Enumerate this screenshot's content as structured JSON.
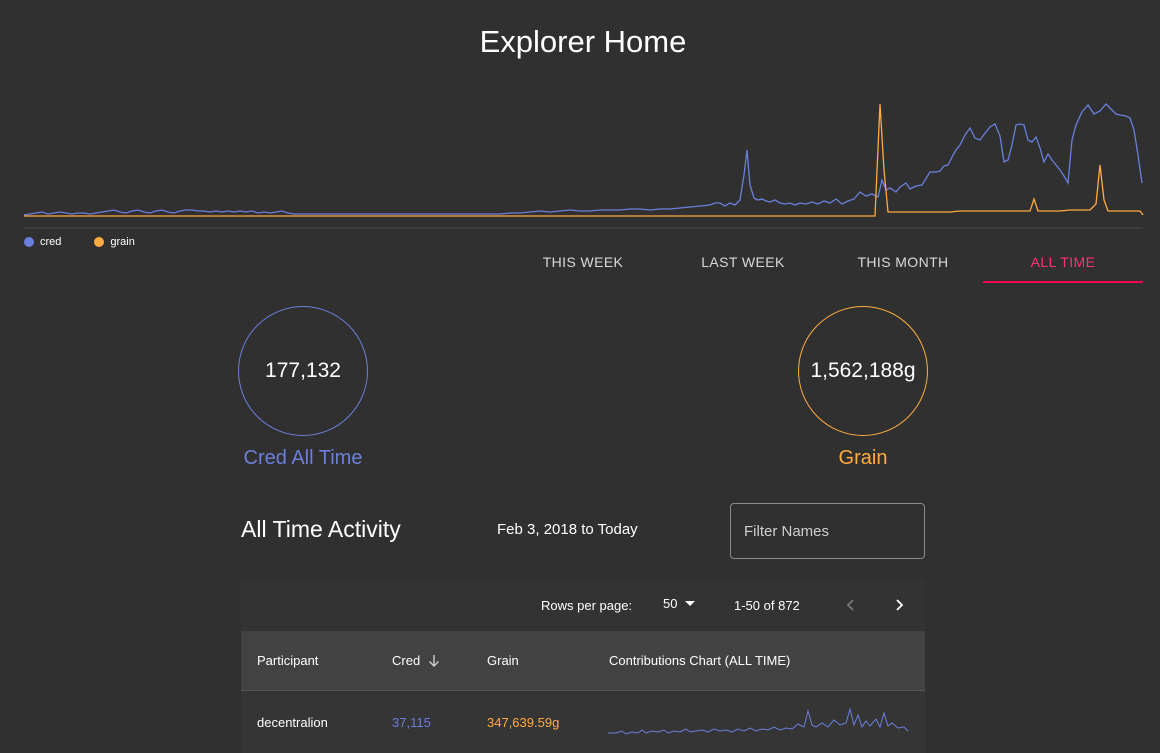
{
  "page": {
    "title": "Explorer Home"
  },
  "colors": {
    "cred": "#6b7fdc",
    "grain": "#ffab40",
    "accent": "#f50057",
    "background": "#303030"
  },
  "legend": [
    {
      "label": "cred",
      "color": "#6b7fdc"
    },
    {
      "label": "grain",
      "color": "#ffab40"
    }
  ],
  "tabs": [
    {
      "label": "THIS WEEK",
      "active": false
    },
    {
      "label": "LAST WEEK",
      "active": false
    },
    {
      "label": "THIS MONTH",
      "active": false
    },
    {
      "label": "ALL TIME",
      "active": true
    }
  ],
  "stats": {
    "cred": {
      "value": "177,132",
      "label": "Cred All Time"
    },
    "grain": {
      "value": "1,562,188g",
      "label": "Grain"
    }
  },
  "activity": {
    "title": "All Time Activity",
    "date_range": "Feb 3, 2018 to Today",
    "filter_placeholder": "Filter Names"
  },
  "pagination": {
    "rows_label": "Rows per page:",
    "rows_value": "50",
    "range": "1-50 of 872",
    "prev_icon": "chevron-left-icon",
    "next_icon": "chevron-right-icon"
  },
  "table": {
    "headers": {
      "participant": "Participant",
      "cred": "Cred",
      "grain": "Grain",
      "chart": "Contributions Chart (ALL TIME)"
    },
    "sort_icon": "arrow-down-icon",
    "rows": [
      {
        "participant": "decentralion",
        "cred": "37,115",
        "grain": "347,639.59g"
      }
    ]
  }
}
